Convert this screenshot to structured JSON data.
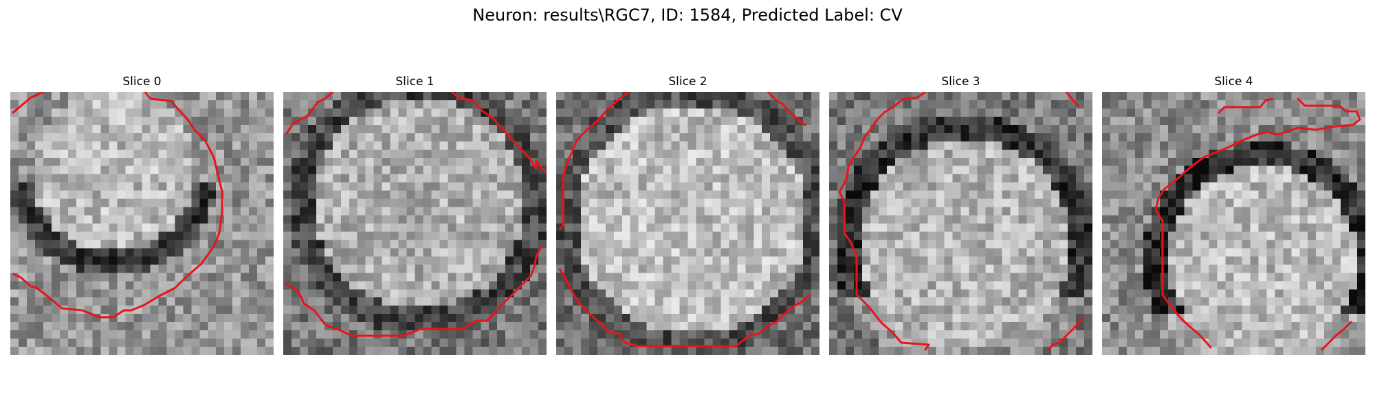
{
  "figure": {
    "title": "Neuron: results\\RGC7, ID: 1584, Predicted Label: CV"
  },
  "contour_color": "#e8141b",
  "slices": [
    {
      "title": "Slice 0"
    },
    {
      "title": "Slice 1"
    },
    {
      "title": "Slice 2"
    },
    {
      "title": "Slice 3"
    },
    {
      "title": "Slice 4"
    }
  ]
}
